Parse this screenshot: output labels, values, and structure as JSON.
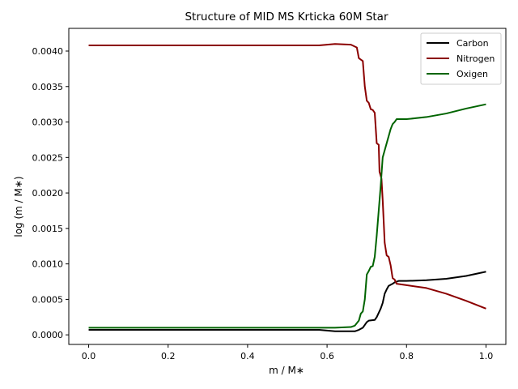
{
  "chart_data": {
    "type": "line",
    "title": "Structure of MID MS Krticka 60M Star",
    "xlabel": "m / M∗",
    "ylabel": "log (m / M∗)",
    "xlim": [
      -0.05,
      1.05
    ],
    "ylim": [
      -0.000135,
      0.00432
    ],
    "xticks": [
      0.0,
      0.2,
      0.4,
      0.6,
      0.8,
      1.0
    ],
    "xtick_labels": [
      "0.0",
      "0.2",
      "0.4",
      "0.6",
      "0.8",
      "1.0"
    ],
    "yticks": [
      0.0,
      0.0005,
      0.001,
      0.0015,
      0.002,
      0.0025,
      0.003,
      0.0035,
      0.004
    ],
    "ytick_labels": [
      "0.0000",
      "0.0005",
      "0.0010",
      "0.0015",
      "0.0020",
      "0.0025",
      "0.0030",
      "0.0035",
      "0.0040"
    ],
    "grid": false,
    "legend_position": "top-right",
    "series": [
      {
        "name": "Carbon",
        "color": "#000000",
        "points": [
          [
            0.0,
            7e-05
          ],
          [
            0.58,
            7e-05
          ],
          [
            0.62,
            5e-05
          ],
          [
            0.67,
            5e-05
          ],
          [
            0.68,
            7e-05
          ],
          [
            0.69,
            0.0001
          ],
          [
            0.7,
            0.00018
          ],
          [
            0.705,
            0.0002
          ],
          [
            0.72,
            0.00021
          ],
          [
            0.725,
            0.00025
          ],
          [
            0.735,
            0.00037
          ],
          [
            0.74,
            0.00045
          ],
          [
            0.745,
            0.00058
          ],
          [
            0.75,
            0.00064
          ],
          [
            0.755,
            0.00069
          ],
          [
            0.765,
            0.00072
          ],
          [
            0.77,
            0.00074
          ],
          [
            0.78,
            0.00076
          ],
          [
            0.8,
            0.00076
          ],
          [
            0.85,
            0.00077
          ],
          [
            0.9,
            0.00079
          ],
          [
            0.95,
            0.00083
          ],
          [
            1.0,
            0.00089
          ]
        ]
      },
      {
        "name": "Nitrogen",
        "color": "#8b0000",
        "points": [
          [
            0.0,
            0.00408
          ],
          [
            0.58,
            0.00408
          ],
          [
            0.62,
            0.0041
          ],
          [
            0.66,
            0.00409
          ],
          [
            0.675,
            0.00405
          ],
          [
            0.68,
            0.0039
          ],
          [
            0.69,
            0.00386
          ],
          [
            0.695,
            0.0035
          ],
          [
            0.7,
            0.0033
          ],
          [
            0.705,
            0.00327
          ],
          [
            0.71,
            0.00318
          ],
          [
            0.715,
            0.00317
          ],
          [
            0.72,
            0.00313
          ],
          [
            0.725,
            0.0027
          ],
          [
            0.73,
            0.00268
          ],
          [
            0.732,
            0.0023
          ],
          [
            0.737,
            0.0022
          ],
          [
            0.74,
            0.0019
          ],
          [
            0.745,
            0.0013
          ],
          [
            0.75,
            0.00112
          ],
          [
            0.755,
            0.0011
          ],
          [
            0.76,
            0.00098
          ],
          [
            0.765,
            0.0008
          ],
          [
            0.77,
            0.00078
          ],
          [
            0.775,
            0.00072
          ],
          [
            0.8,
            0.0007
          ],
          [
            0.85,
            0.00066
          ],
          [
            0.9,
            0.00058
          ],
          [
            0.95,
            0.00048
          ],
          [
            1.0,
            0.00037
          ]
        ]
      },
      {
        "name": "Oxigen",
        "color": "#006400",
        "points": [
          [
            0.0,
            0.0001
          ],
          [
            0.62,
            0.0001
          ],
          [
            0.66,
            0.00011
          ],
          [
            0.67,
            0.00013
          ],
          [
            0.68,
            0.0002
          ],
          [
            0.685,
            0.0003
          ],
          [
            0.69,
            0.00033
          ],
          [
            0.695,
            0.0005
          ],
          [
            0.7,
            0.00085
          ],
          [
            0.705,
            0.0009
          ],
          [
            0.71,
            0.00096
          ],
          [
            0.715,
            0.00097
          ],
          [
            0.72,
            0.0011
          ],
          [
            0.725,
            0.0014
          ],
          [
            0.73,
            0.00175
          ],
          [
            0.735,
            0.0021
          ],
          [
            0.74,
            0.0025
          ],
          [
            0.745,
            0.0026
          ],
          [
            0.75,
            0.0027
          ],
          [
            0.755,
            0.0028
          ],
          [
            0.76,
            0.0029
          ],
          [
            0.765,
            0.00297
          ],
          [
            0.77,
            0.003
          ],
          [
            0.775,
            0.00304
          ],
          [
            0.8,
            0.00304
          ],
          [
            0.85,
            0.00307
          ],
          [
            0.9,
            0.00312
          ],
          [
            0.95,
            0.00319
          ],
          [
            1.0,
            0.00325
          ]
        ]
      }
    ]
  }
}
